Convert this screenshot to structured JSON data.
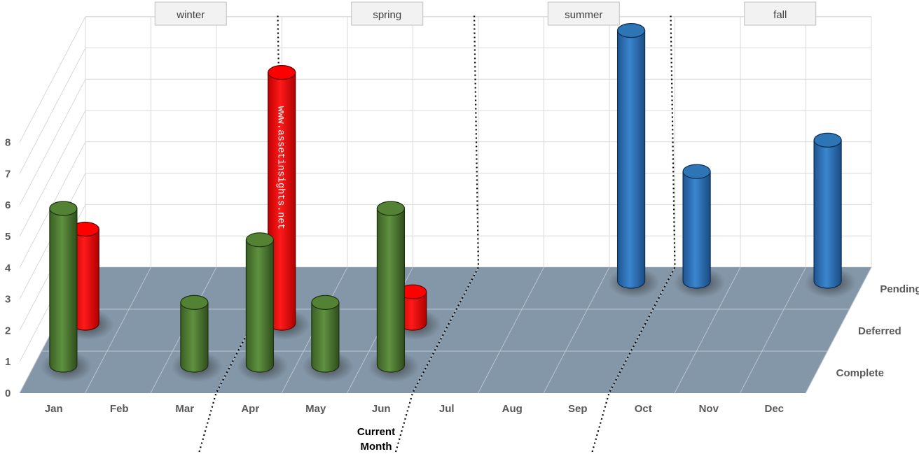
{
  "chart_data": {
    "type": "bar",
    "style": "3d-cylinder",
    "categories": [
      "Jan",
      "Feb",
      "Mar",
      "Apr",
      "May",
      "Jun",
      "Jul",
      "Aug",
      "Sep",
      "Oct",
      "Nov",
      "Dec"
    ],
    "series": [
      {
        "name": "Complete",
        "color": "#548235",
        "values": [
          5,
          null,
          2,
          4,
          2,
          5,
          null,
          null,
          null,
          null,
          null,
          null
        ]
      },
      {
        "name": "Deferred",
        "color": "#ff0000",
        "values": [
          3,
          null,
          null,
          8,
          null,
          1,
          null,
          null,
          null,
          null,
          null,
          null
        ]
      },
      {
        "name": "Pending",
        "color": "#2e75b6",
        "values": [
          null,
          null,
          null,
          null,
          null,
          null,
          null,
          null,
          8,
          3.5,
          null,
          4.5
        ]
      }
    ],
    "ylim": [
      0,
      8
    ],
    "yticks": [
      "0",
      "1",
      "2",
      "3",
      "4",
      "5",
      "6",
      "7",
      "8"
    ],
    "grid": true,
    "floor_color": "#8497a9",
    "seasons": [
      {
        "label": "winter",
        "month": "Feb"
      },
      {
        "label": "spring",
        "month": "May"
      },
      {
        "label": "summer",
        "month": "Aug"
      },
      {
        "label": "fall",
        "month": "Nov"
      }
    ],
    "separators_after": [
      "Mar",
      "Jun",
      "Sep"
    ],
    "current_month": {
      "month": "Jun",
      "label_line1": "Current",
      "label_line2": "Month"
    },
    "watermark": "www.assetinsights.net"
  }
}
